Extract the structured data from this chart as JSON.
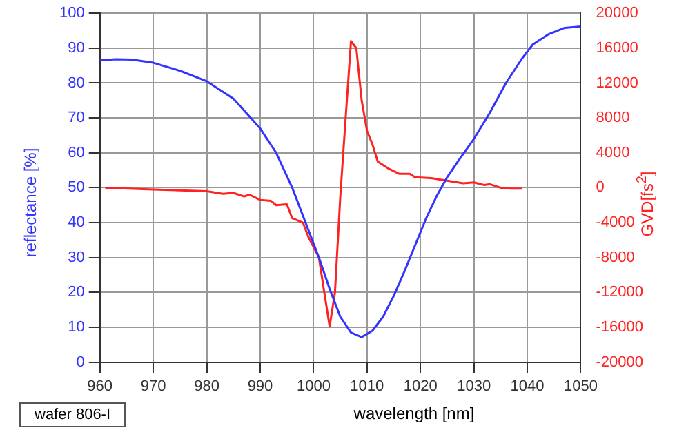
{
  "chart_data": {
    "type": "line",
    "xlabel": "wavelength [nm]",
    "ylabel": "reflectance [%]",
    "y2label": "GVD[fs$^{2}$]",
    "annotations": [
      "wafer 806-I"
    ],
    "xlim": [
      960,
      1050
    ],
    "xticks": [
      960,
      970,
      980,
      990,
      1000,
      1010,
      1020,
      1030,
      1040,
      1050
    ],
    "ylim": [
      0,
      100
    ],
    "yticks": [
      0,
      10,
      20,
      30,
      40,
      50,
      60,
      70,
      80,
      90,
      100
    ],
    "y2lim": [
      -20000,
      20000
    ],
    "y2ticks": [
      -20000,
      -16000,
      -12000,
      -8000,
      -4000,
      0,
      4000,
      8000,
      12000,
      16000,
      20000
    ],
    "grid": true,
    "legend": false,
    "marker": "none",
    "line_style": "solid",
    "series": [
      {
        "color": "#3333ff",
        "x": [
          960,
          963,
          966,
          970,
          975,
          980,
          985,
          990,
          993,
          996,
          999,
          1001,
          1003,
          1005,
          1007,
          1009,
          1011,
          1013,
          1015,
          1017,
          1019,
          1021,
          1023,
          1025,
          1027,
          1030,
          1033,
          1036,
          1039,
          1041,
          1044,
          1047,
          1050
        ],
        "values": [
          86.5,
          86.8,
          86.7,
          85.8,
          83.5,
          80.5,
          75.5,
          67,
          60,
          50,
          38,
          30,
          21,
          13,
          8.5,
          7.2,
          9,
          13,
          19,
          26,
          33.5,
          41,
          47.5,
          53,
          57.5,
          64,
          71.5,
          80,
          87,
          91,
          94,
          95.8,
          96.2
        ]
      },
      {
        "color": "#ff2222",
        "axis": "y2",
        "x": [
          961,
          970,
          975,
          980,
          983,
          985,
          987,
          988,
          990,
          992,
          993,
          995,
          996,
          998,
          999,
          1000,
          1001,
          1002,
          1003,
          1004,
          1005,
          1006,
          1007,
          1008,
          1009,
          1010,
          1011,
          1012,
          1014,
          1016,
          1018,
          1019,
          1022,
          1025,
          1028,
          1030,
          1032,
          1033,
          1035,
          1037,
          1039
        ],
        "values": [
          0,
          -200,
          -300,
          -400,
          -700,
          -600,
          -1000,
          -800,
          -1400,
          -1500,
          -2000,
          -1900,
          -3500,
          -4000,
          -5600,
          -6800,
          -8000,
          -12000,
          -15900,
          -12000,
          -1000,
          8000,
          16800,
          16000,
          10000,
          6500,
          5000,
          3000,
          2200,
          1600,
          1600,
          1200,
          1100,
          800,
          500,
          600,
          300,
          400,
          0,
          -100,
          -100
        ]
      }
    ]
  }
}
